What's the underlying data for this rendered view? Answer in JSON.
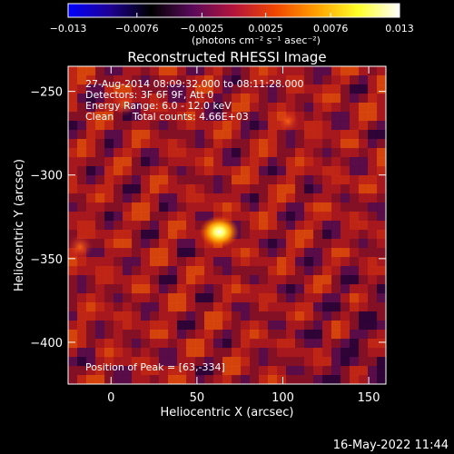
{
  "colorbar": {
    "stops": [
      "#0000ff",
      "#1e0096",
      "#000000",
      "#5a0a5a",
      "#b4143c",
      "#f04600",
      "#ffa000",
      "#ffff28",
      "#ffffff"
    ],
    "ticks": [
      "−0.013",
      "−0.0076",
      "−0.0025",
      "0.0025",
      "0.0076",
      "0.013"
    ],
    "tick_values": [
      -0.013,
      -0.0076,
      -0.0025,
      0.0025,
      0.0076,
      0.013
    ],
    "units": "(photons cm⁻² s⁻¹ asec⁻²)"
  },
  "chart_data": {
    "type": "heatmap",
    "title": "Reconstructed RHESSI Image",
    "xlabel": "Heliocentric X (arcsec)",
    "ylabel": "Heliocentric Y (arcsec)",
    "xlim": [
      -25,
      160
    ],
    "ylim": [
      -425,
      -235
    ],
    "xticks": [
      0,
      50,
      100,
      150
    ],
    "yticks": [
      -250,
      -300,
      -350,
      -400
    ],
    "annotations": {
      "time_range": "27-Aug-2014 08:09:32.000 to 08:11:28.000",
      "detectors": "Detectors: 3F 6F 9F, Att 0",
      "energy": "Energy Range: 6.0 - 12.0 keV",
      "method": "Clean",
      "counts": "Total counts: 4.66E+03",
      "peak": "Position of Peak = [63,-334]"
    },
    "peak": {
      "x": 63,
      "y": -334,
      "value": 0.013
    },
    "secondary_sources": [
      {
        "x": -18,
        "y": -343,
        "value": 0.005
      },
      {
        "x": 8,
        "y": -258,
        "value": 0.004
      },
      {
        "x": 103,
        "y": -268,
        "value": 0.0035
      }
    ],
    "value_range": [
      -0.013,
      0.013
    ]
  },
  "footer": {
    "timestamp": "16-May-2022 11:44"
  }
}
